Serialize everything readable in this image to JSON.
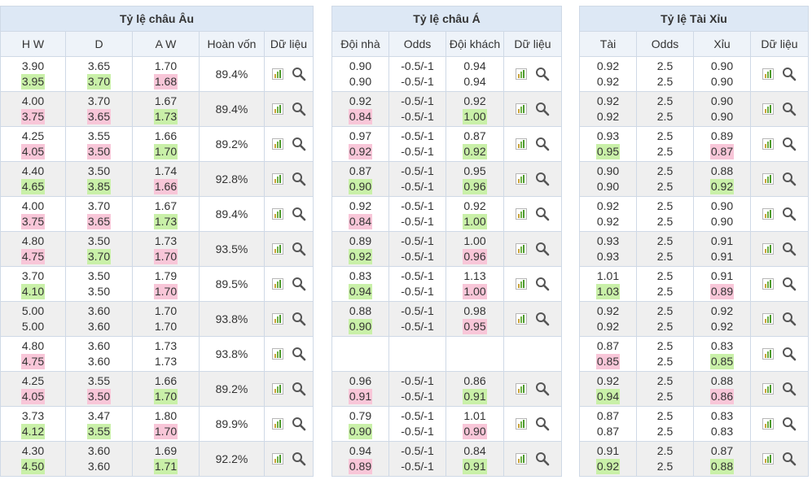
{
  "europe": {
    "title": "Tỷ lệ châu Âu",
    "headers": [
      "H W",
      "D",
      "A W",
      "Hoàn vốn",
      "Dữ liệu"
    ],
    "rows": [
      {
        "hw": [
          "3.90",
          "3.95"
        ],
        "d": [
          "3.65",
          "3.70"
        ],
        "aw": [
          "1.70",
          "1.68"
        ],
        "ret": "89.4%",
        "c": [
          [
            "",
            "up"
          ],
          [
            "",
            "up"
          ],
          [
            "",
            "down"
          ]
        ]
      },
      {
        "hw": [
          "4.00",
          "3.75"
        ],
        "d": [
          "3.70",
          "3.65"
        ],
        "aw": [
          "1.67",
          "1.73"
        ],
        "ret": "89.4%",
        "c": [
          [
            "",
            "down"
          ],
          [
            "",
            "down"
          ],
          [
            "",
            "up"
          ]
        ]
      },
      {
        "hw": [
          "4.25",
          "4.05"
        ],
        "d": [
          "3.55",
          "3.50"
        ],
        "aw": [
          "1.66",
          "1.70"
        ],
        "ret": "89.2%",
        "c": [
          [
            "",
            "down"
          ],
          [
            "",
            "down"
          ],
          [
            "",
            "up"
          ]
        ]
      },
      {
        "hw": [
          "4.40",
          "4.65"
        ],
        "d": [
          "3.50",
          "3.85"
        ],
        "aw": [
          "1.74",
          "1.66"
        ],
        "ret": "92.8%",
        "c": [
          [
            "",
            "up"
          ],
          [
            "",
            "up"
          ],
          [
            "",
            "down"
          ]
        ]
      },
      {
        "hw": [
          "4.00",
          "3.75"
        ],
        "d": [
          "3.70",
          "3.65"
        ],
        "aw": [
          "1.67",
          "1.73"
        ],
        "ret": "89.4%",
        "c": [
          [
            "",
            "down"
          ],
          [
            "",
            "down"
          ],
          [
            "",
            "up"
          ]
        ]
      },
      {
        "hw": [
          "4.80",
          "4.75"
        ],
        "d": [
          "3.50",
          "3.70"
        ],
        "aw": [
          "1.73",
          "1.70"
        ],
        "ret": "93.5%",
        "c": [
          [
            "",
            "down"
          ],
          [
            "",
            "up"
          ],
          [
            "",
            "down"
          ]
        ]
      },
      {
        "hw": [
          "3.70",
          "4.10"
        ],
        "d": [
          "3.50",
          "3.50"
        ],
        "aw": [
          "1.79",
          "1.70"
        ],
        "ret": "89.5%",
        "c": [
          [
            "",
            "up"
          ],
          [
            "",
            ""
          ],
          [
            "",
            "down"
          ]
        ]
      },
      {
        "hw": [
          "5.00",
          "5.00"
        ],
        "d": [
          "3.60",
          "3.60"
        ],
        "aw": [
          "1.70",
          "1.70"
        ],
        "ret": "93.8%",
        "c": [
          [
            "",
            ""
          ],
          [
            "",
            ""
          ],
          [
            "",
            ""
          ]
        ]
      },
      {
        "hw": [
          "4.80",
          "4.75"
        ],
        "d": [
          "3.60",
          "3.60"
        ],
        "aw": [
          "1.73",
          "1.73"
        ],
        "ret": "93.8%",
        "c": [
          [
            "",
            "down"
          ],
          [
            "",
            ""
          ],
          [
            "",
            ""
          ]
        ]
      },
      {
        "hw": [
          "4.25",
          "4.05"
        ],
        "d": [
          "3.55",
          "3.50"
        ],
        "aw": [
          "1.66",
          "1.70"
        ],
        "ret": "89.2%",
        "c": [
          [
            "",
            "down"
          ],
          [
            "",
            "down"
          ],
          [
            "",
            "up"
          ]
        ]
      },
      {
        "hw": [
          "3.73",
          "4.12"
        ],
        "d": [
          "3.47",
          "3.55"
        ],
        "aw": [
          "1.80",
          "1.70"
        ],
        "ret": "89.9%",
        "c": [
          [
            "",
            "up"
          ],
          [
            "",
            "up"
          ],
          [
            "",
            "down"
          ]
        ]
      },
      {
        "hw": [
          "4.30",
          "4.50"
        ],
        "d": [
          "3.60",
          "3.60"
        ],
        "aw": [
          "1.69",
          "1.71"
        ],
        "ret": "92.2%",
        "c": [
          [
            "",
            "up"
          ],
          [
            "",
            ""
          ],
          [
            "",
            "up"
          ]
        ]
      }
    ]
  },
  "asia": {
    "title": "Tỷ lệ châu Á",
    "headers": [
      "Đội nhà",
      "Odds",
      "Đội khách",
      "Dữ liệu"
    ],
    "rows": [
      {
        "home": [
          "0.90",
          "0.90"
        ],
        "odds": [
          "-0.5/-1",
          "-0.5/-1"
        ],
        "away": [
          "0.94",
          "0.94"
        ],
        "c": [
          [
            "",
            ""
          ],
          [
            "",
            ""
          ]
        ]
      },
      {
        "home": [
          "0.92",
          "0.84"
        ],
        "odds": [
          "-0.5/-1",
          "-0.5/-1"
        ],
        "away": [
          "0.92",
          "1.00"
        ],
        "c": [
          [
            "",
            "down"
          ],
          [
            "",
            "up"
          ]
        ]
      },
      {
        "home": [
          "0.97",
          "0.92"
        ],
        "odds": [
          "-0.5/-1",
          "-0.5/-1"
        ],
        "away": [
          "0.87",
          "0.92"
        ],
        "c": [
          [
            "",
            "down"
          ],
          [
            "",
            "up"
          ]
        ]
      },
      {
        "home": [
          "0.87",
          "0.90"
        ],
        "odds": [
          "-0.5/-1",
          "-0.5/-1"
        ],
        "away": [
          "0.95",
          "0.96"
        ],
        "c": [
          [
            "",
            "up"
          ],
          [
            "",
            "up"
          ]
        ]
      },
      {
        "home": [
          "0.92",
          "0.84"
        ],
        "odds": [
          "-0.5/-1",
          "-0.5/-1"
        ],
        "away": [
          "0.92",
          "1.00"
        ],
        "c": [
          [
            "",
            "down"
          ],
          [
            "",
            "up"
          ]
        ]
      },
      {
        "home": [
          "0.89",
          "0.92"
        ],
        "odds": [
          "-0.5/-1",
          "-0.5/-1"
        ],
        "away": [
          "1.00",
          "0.96"
        ],
        "c": [
          [
            "",
            "up"
          ],
          [
            "",
            "down"
          ]
        ]
      },
      {
        "home": [
          "0.83",
          "0.94"
        ],
        "odds": [
          "-0.5/-1",
          "-0.5/-1"
        ],
        "away": [
          "1.13",
          "1.00"
        ],
        "c": [
          [
            "",
            "up"
          ],
          [
            "",
            "down"
          ]
        ]
      },
      {
        "home": [
          "0.88",
          "0.90"
        ],
        "odds": [
          "-0.5/-1",
          "-0.5/-1"
        ],
        "away": [
          "0.98",
          "0.95"
        ],
        "c": [
          [
            "",
            "up"
          ],
          [
            "",
            "down"
          ]
        ]
      },
      null,
      {
        "home": [
          "0.96",
          "0.91"
        ],
        "odds": [
          "-0.5/-1",
          "-0.5/-1"
        ],
        "away": [
          "0.86",
          "0.91"
        ],
        "c": [
          [
            "",
            "down"
          ],
          [
            "",
            "up"
          ]
        ]
      },
      {
        "home": [
          "0.79",
          "0.90"
        ],
        "odds": [
          "-0.5/-1",
          "-0.5/-1"
        ],
        "away": [
          "1.01",
          "0.90"
        ],
        "c": [
          [
            "",
            "up"
          ],
          [
            "",
            "down"
          ]
        ]
      },
      {
        "home": [
          "0.94",
          "0.89"
        ],
        "odds": [
          "-0.5/-1",
          "-0.5/-1"
        ],
        "away": [
          "0.84",
          "0.91"
        ],
        "c": [
          [
            "",
            "down"
          ],
          [
            "",
            "up"
          ]
        ]
      }
    ]
  },
  "overunder": {
    "title": "Tỷ lệ Tài Xỉu",
    "headers": [
      "Tài",
      "Odds",
      "Xỉu",
      "Dữ liệu"
    ],
    "rows": [
      {
        "over": [
          "0.92",
          "0.92"
        ],
        "odds": [
          "2.5",
          "2.5"
        ],
        "under": [
          "0.90",
          "0.90"
        ],
        "c": [
          [
            "",
            ""
          ],
          [
            "",
            ""
          ]
        ]
      },
      {
        "over": [
          "0.92",
          "0.92"
        ],
        "odds": [
          "2.5",
          "2.5"
        ],
        "under": [
          "0.90",
          "0.90"
        ],
        "c": [
          [
            "",
            ""
          ],
          [
            "",
            ""
          ]
        ]
      },
      {
        "over": [
          "0.93",
          "0.95"
        ],
        "odds": [
          "2.5",
          "2.5"
        ],
        "under": [
          "0.89",
          "0.87"
        ],
        "c": [
          [
            "",
            "up"
          ],
          [
            "",
            "down"
          ]
        ]
      },
      {
        "over": [
          "0.90",
          "0.90"
        ],
        "odds": [
          "2.5",
          "2.5"
        ],
        "under": [
          "0.88",
          "0.92"
        ],
        "c": [
          [
            "",
            ""
          ],
          [
            "",
            "up"
          ]
        ]
      },
      {
        "over": [
          "0.92",
          "0.92"
        ],
        "odds": [
          "2.5",
          "2.5"
        ],
        "under": [
          "0.90",
          "0.90"
        ],
        "c": [
          [
            "",
            ""
          ],
          [
            "",
            ""
          ]
        ]
      },
      {
        "over": [
          "0.93",
          "0.93"
        ],
        "odds": [
          "2.5",
          "2.5"
        ],
        "under": [
          "0.91",
          "0.91"
        ],
        "c": [
          [
            "",
            ""
          ],
          [
            "",
            ""
          ]
        ]
      },
      {
        "over": [
          "1.01",
          "1.03"
        ],
        "odds": [
          "2.5",
          "2.5"
        ],
        "under": [
          "0.91",
          "0.89"
        ],
        "c": [
          [
            "",
            "up"
          ],
          [
            "",
            "down"
          ]
        ]
      },
      {
        "over": [
          "0.92",
          "0.92"
        ],
        "odds": [
          "2.5",
          "2.5"
        ],
        "under": [
          "0.92",
          "0.92"
        ],
        "c": [
          [
            "",
            ""
          ],
          [
            "",
            ""
          ]
        ]
      },
      {
        "over": [
          "0.87",
          "0.85"
        ],
        "odds": [
          "2.5",
          "2.5"
        ],
        "under": [
          "0.83",
          "0.85"
        ],
        "c": [
          [
            "",
            "down"
          ],
          [
            "",
            "up"
          ]
        ]
      },
      {
        "over": [
          "0.92",
          "0.94"
        ],
        "odds": [
          "2.5",
          "2.5"
        ],
        "under": [
          "0.88",
          "0.86"
        ],
        "c": [
          [
            "",
            "up"
          ],
          [
            "",
            "down"
          ]
        ]
      },
      {
        "over": [
          "0.87",
          "0.87"
        ],
        "odds": [
          "2.5",
          "2.5"
        ],
        "under": [
          "0.83",
          "0.83"
        ],
        "c": [
          [
            "",
            ""
          ],
          [
            "",
            ""
          ]
        ]
      },
      {
        "over": [
          "0.91",
          "0.92"
        ],
        "odds": [
          "2.5",
          "2.5"
        ],
        "under": [
          "0.87",
          "0.88"
        ],
        "c": [
          [
            "",
            "up"
          ],
          [
            "",
            "up"
          ]
        ]
      }
    ]
  },
  "icons": {
    "chart": "bar-chart-icon",
    "search": "magnifier-icon"
  },
  "colors": {
    "up": "#c9f0a8",
    "down": "#f8c6d8",
    "header_bg": "#dde8f5",
    "alt_row": "#efefef"
  }
}
